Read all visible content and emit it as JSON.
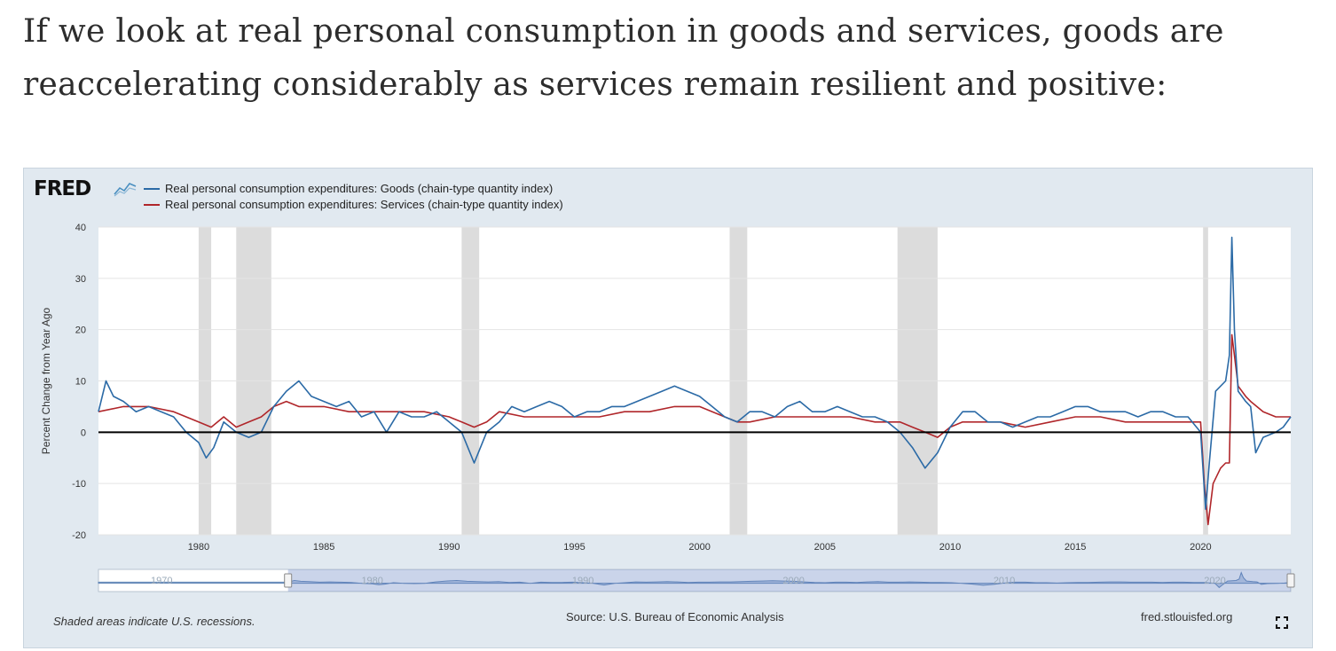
{
  "intro_text": "If we look at real personal consumption in goods and services, goods are reaccelerating considerably as services remain resilient and positive:",
  "fred": {
    "logo_text": "FRED",
    "logo_icon": "fred-line-chart-icon",
    "recession_note": "Shaded areas indicate U.S. recessions.",
    "source": "Source: U.S. Bureau of Economic Analysis",
    "url": "fred.stlouisfed.org",
    "fullscreen_icon": "fullscreen-icon",
    "navigator_labels": [
      "1970",
      "1980",
      "1990",
      "2000",
      "2010",
      "2020"
    ]
  },
  "colors": {
    "goods": "#2b6aa6",
    "services": "#b0262a",
    "recession": "#dcdcdc",
    "frame": "#e1e9f0",
    "plot_bg": "#ffffff",
    "zero_line": "#000000"
  },
  "chart_data": {
    "type": "line",
    "ylabel": "Percent Change from Year Ago",
    "xlabel": "",
    "xlim": [
      1976.0,
      2023.6
    ],
    "ylim": [
      -20,
      40
    ],
    "x_ticks": [
      1980,
      1985,
      1990,
      1995,
      2000,
      2005,
      2010,
      2015,
      2020
    ],
    "y_ticks": [
      -20,
      -10,
      0,
      10,
      20,
      30,
      40
    ],
    "grid": true,
    "legend_position": "top-left",
    "recessions": [
      [
        1980.0,
        1980.5
      ],
      [
        1981.5,
        1982.9
      ],
      [
        1990.5,
        1991.2
      ],
      [
        2001.2,
        2001.9
      ],
      [
        2007.9,
        2009.5
      ],
      [
        2020.1,
        2020.3
      ]
    ],
    "series": [
      {
        "name": "Real personal consumption expenditures: Goods (chain-type quantity index)",
        "color": "#2b6aa6",
        "x": [
          1976.0,
          1976.3,
          1976.6,
          1977.0,
          1977.5,
          1978.0,
          1978.5,
          1979.0,
          1979.5,
          1980.0,
          1980.3,
          1980.6,
          1981.0,
          1981.5,
          1982.0,
          1982.5,
          1983.0,
          1983.5,
          1984.0,
          1984.5,
          1985.0,
          1985.5,
          1986.0,
          1986.5,
          1987.0,
          1987.5,
          1988.0,
          1988.5,
          1989.0,
          1989.5,
          1990.0,
          1990.5,
          1991.0,
          1991.5,
          1992.0,
          1992.5,
          1993.0,
          1993.5,
          1994.0,
          1994.5,
          1995.0,
          1995.5,
          1996.0,
          1996.5,
          1997.0,
          1997.5,
          1998.0,
          1998.5,
          1999.0,
          1999.5,
          2000.0,
          2000.5,
          2001.0,
          2001.5,
          2002.0,
          2002.5,
          2003.0,
          2003.5,
          2004.0,
          2004.5,
          2005.0,
          2005.5,
          2006.0,
          2006.5,
          2007.0,
          2007.5,
          2008.0,
          2008.5,
          2009.0,
          2009.5,
          2010.0,
          2010.5,
          2011.0,
          2011.5,
          2012.0,
          2012.5,
          2013.0,
          2013.5,
          2014.0,
          2014.5,
          2015.0,
          2015.5,
          2016.0,
          2016.5,
          2017.0,
          2017.5,
          2018.0,
          2018.5,
          2019.0,
          2019.5,
          2020.0,
          2020.2,
          2020.35,
          2020.6,
          2021.0,
          2021.15,
          2021.25,
          2021.35,
          2021.5,
          2021.8,
          2022.0,
          2022.2,
          2022.5,
          2023.0,
          2023.3,
          2023.6
        ],
        "y": [
          4,
          10,
          7,
          6,
          4,
          5,
          4,
          3,
          0,
          -2,
          -5,
          -3,
          2,
          0,
          -1,
          0,
          5,
          8,
          10,
          7,
          6,
          5,
          6,
          3,
          4,
          0,
          4,
          3,
          3,
          4,
          2,
          0,
          -6,
          0,
          2,
          5,
          4,
          5,
          6,
          5,
          3,
          4,
          4,
          5,
          5,
          6,
          7,
          8,
          9,
          8,
          7,
          5,
          3,
          2,
          4,
          4,
          3,
          5,
          6,
          4,
          4,
          5,
          4,
          3,
          3,
          2,
          0,
          -3,
          -7,
          -4,
          1,
          4,
          4,
          2,
          2,
          1,
          2,
          3,
          3,
          4,
          5,
          5,
          4,
          4,
          4,
          3,
          4,
          4,
          3,
          3,
          0,
          -15,
          -6,
          8,
          10,
          15,
          38,
          20,
          8,
          6,
          5,
          -4,
          -1,
          0,
          1,
          3
        ]
      },
      {
        "name": "Real personal consumption expenditures: Services (chain-type quantity index)",
        "color": "#b0262a",
        "x": [
          1976.0,
          1977.0,
          1978.0,
          1979.0,
          1980.0,
          1980.5,
          1981.0,
          1981.5,
          1982.0,
          1982.5,
          1983.0,
          1983.5,
          1984.0,
          1985.0,
          1986.0,
          1987.0,
          1988.0,
          1989.0,
          1990.0,
          1990.5,
          1991.0,
          1991.5,
          1992.0,
          1993.0,
          1994.0,
          1995.0,
          1996.0,
          1997.0,
          1998.0,
          1999.0,
          2000.0,
          2001.0,
          2001.5,
          2002.0,
          2003.0,
          2004.0,
          2005.0,
          2006.0,
          2007.0,
          2008.0,
          2008.5,
          2009.0,
          2009.5,
          2010.0,
          2010.5,
          2011.0,
          2012.0,
          2013.0,
          2014.0,
          2015.0,
          2016.0,
          2017.0,
          2018.0,
          2019.0,
          2020.0,
          2020.15,
          2020.3,
          2020.5,
          2020.8,
          2021.0,
          2021.15,
          2021.25,
          2021.35,
          2021.5,
          2021.8,
          2022.0,
          2022.5,
          2023.0,
          2023.6
        ],
        "y": [
          4,
          5,
          5,
          4,
          2,
          1,
          3,
          1,
          2,
          3,
          5,
          6,
          5,
          5,
          4,
          4,
          4,
          4,
          3,
          2,
          1,
          2,
          4,
          3,
          3,
          3,
          3,
          4,
          4,
          5,
          5,
          3,
          2,
          2,
          3,
          3,
          3,
          3,
          2,
          2,
          1,
          0,
          -1,
          1,
          2,
          2,
          2,
          1,
          2,
          3,
          3,
          2,
          2,
          2,
          2,
          -10,
          -18,
          -10,
          -7,
          -6,
          -6,
          19,
          15,
          9,
          7,
          6,
          4,
          3,
          3
        ]
      }
    ]
  }
}
